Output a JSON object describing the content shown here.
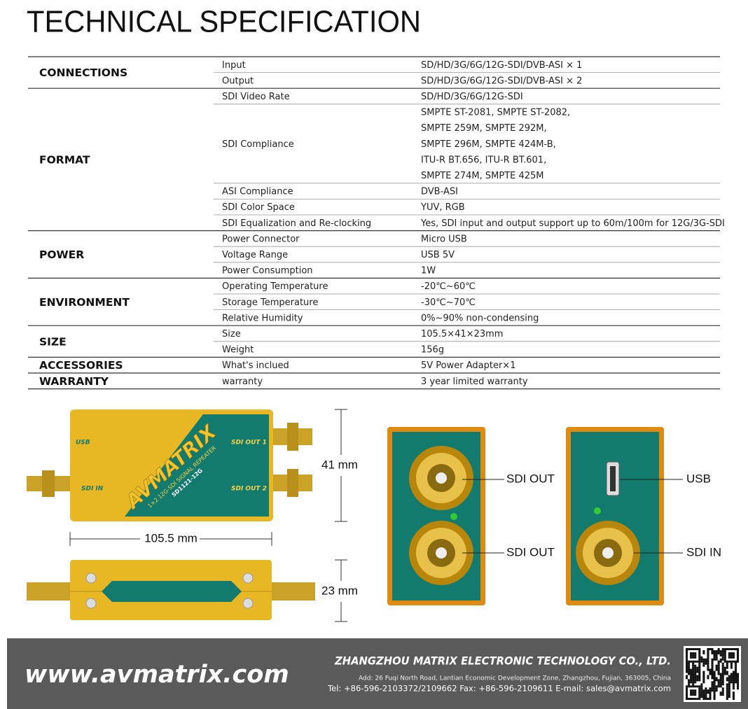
{
  "header": {
    "title": "TECHNICAL SPECIFICATION"
  },
  "spec": {
    "groups": [
      {
        "name": "CONNECTIONS",
        "rows": [
          {
            "label": "Input",
            "value": "SD/HD/3G/6G/12G-SDI/DVB-ASI × 1"
          },
          {
            "label": "Output",
            "value": "SD/HD/3G/6G/12G-SDI/DVB-ASI × 2"
          }
        ]
      },
      {
        "name": "FORMAT",
        "rows": [
          {
            "label": "SDI Video Rate",
            "value": "SD/HD/3G/6G/12G-SDI"
          },
          {
            "label": "SDI Compliance",
            "lines": [
              "SMPTE ST-2081, SMPTE ST-2082,",
              "SMPTE 259M, SMPTE 292M,",
              "SMPTE 296M, SMPTE 424M-B,",
              "ITU-R BT.656, ITU-R BT.601,",
              "SMPTE 274M, SMPTE 425M"
            ]
          },
          {
            "label": "ASI Compliance",
            "value": "DVB-ASI"
          },
          {
            "label": "SDI Color Space",
            "value": "YUV, RGB"
          },
          {
            "label": "SDI Equalization and Re-clocking",
            "value": "Yes, SDI input and output support up to 60m/100m for 12G/3G-SDI"
          }
        ]
      },
      {
        "name": "POWER",
        "rows": [
          {
            "label": "Power Connector",
            "value": "Micro USB"
          },
          {
            "label": "Voltage Range",
            "value": "USB 5V"
          },
          {
            "label": "Power Consumption",
            "value": "1W"
          }
        ]
      },
      {
        "name": "ENVIRONMENT",
        "rows": [
          {
            "label": "Operating Temperature",
            "value": "-20℃~60℃"
          },
          {
            "label": "Storage Temperature",
            "value": "-30℃~70℃"
          },
          {
            "label": "Relative Humidity",
            "value": "0%~90% non-condensing"
          }
        ]
      },
      {
        "name": "SIZE",
        "rows": [
          {
            "label": "Size",
            "value": "105.5×41×23mm"
          },
          {
            "label": "Weight",
            "value": "156g"
          }
        ]
      },
      {
        "name": "ACCESSORIES",
        "rows": [
          {
            "label": "What's inclued",
            "value": "5V Power Adapter×1"
          }
        ]
      },
      {
        "name": "WARRANTY",
        "rows": [
          {
            "label": "warranty",
            "value": "3 year limited warranty"
          }
        ]
      }
    ]
  },
  "device": {
    "brand": "AVMATRIX",
    "model_desc": "1×2 12G-SDI SIGNAL REPEATER",
    "model": "SD1121-12G",
    "ports": {
      "usb": "USB",
      "sdi_in": "SDI IN",
      "sdi_out_1": "SDI OUT 1",
      "sdi_out_2": "SDI OUT 2"
    },
    "dimensions": {
      "height": "41 mm",
      "length": "105.5 mm",
      "depth": "23 mm"
    },
    "end_labels": {
      "front_top": "SDI OUT",
      "front_bottom": "SDI OUT",
      "back_top": "USB",
      "back_bottom": "SDI IN"
    }
  },
  "footer": {
    "website": "www.avmatrix.com",
    "company": "ZHANGZHOU MATRIX ELECTRONIC TECHNOLOGY CO., LTD.",
    "address": "Add: 26 Fuqi North Road, Lantian Economic Development Zone, Zhangzhou, Fujian, 363005, China",
    "contact": "Tel: +86-596-2103372/2109662   Fax: +86-596-2109611   E-mail: sales@avmatrix.com"
  }
}
